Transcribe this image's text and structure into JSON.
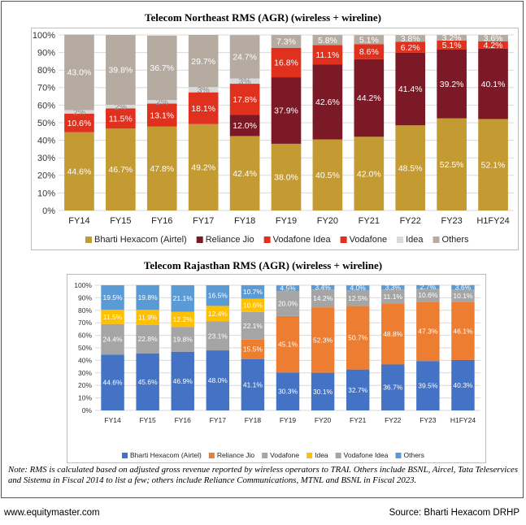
{
  "chart_data": [
    {
      "type": "bar",
      "stacked": true,
      "title": "Telecom Northeast RMS (AGR) (wireless + wireline)",
      "categories": [
        "FY14",
        "FY15",
        "FY16",
        "FY17",
        "FY18",
        "FY19",
        "FY20",
        "FY21",
        "FY22",
        "FY23",
        "H1FY24"
      ],
      "ylim": [
        0,
        100
      ],
      "yticks": [
        "0%",
        "10%",
        "20%",
        "30%",
        "40%",
        "50%",
        "60%",
        "70%",
        "80%",
        "90%",
        "100%"
      ],
      "legend_position": "bottom",
      "series": [
        {
          "name": "Bharti Hexacom (Airtel)",
          "color": "#C49A33",
          "values": [
            44.6,
            46.7,
            47.8,
            49.2,
            42.4,
            38.0,
            40.5,
            42.0,
            48.5,
            52.5,
            52.1
          ],
          "labels": [
            "44.6%",
            "46.7%",
            "47.8%",
            "49.2%",
            "42.4%",
            "38.0%",
            "40.5%",
            "42.0%",
            "48.5%",
            "52.5%",
            "52.1%"
          ]
        },
        {
          "name": "Reliance Jio",
          "color": "#7B1A26",
          "values": [
            0,
            0,
            0,
            0,
            12.0,
            37.9,
            42.6,
            44.2,
            41.4,
            39.2,
            40.1
          ],
          "labels": [
            "",
            "",
            "",
            "",
            "12.0%",
            "37.9%",
            "42.6%",
            "44.2%",
            "41.4%",
            "39.2%",
            "40.1%"
          ]
        },
        {
          "name": "Vodafone Idea",
          "color": "#E0301E",
          "values": [
            0,
            0,
            0,
            0,
            0,
            16.8,
            11.1,
            8.6,
            6.2,
            5.1,
            4.2
          ],
          "labels": [
            "",
            "",
            "",
            "",
            "",
            "16.8%",
            "11.1%",
            "8.6%",
            "6.2%",
            "5.1%",
            "4.2%"
          ]
        },
        {
          "name": "Vodafone",
          "color": "#E0301E",
          "values": [
            10.6,
            11.5,
            13.1,
            18.1,
            17.8,
            0,
            0,
            0,
            0,
            0,
            0
          ],
          "labels": [
            "10.6%",
            "11.5%",
            "13.1%",
            "18.1%",
            "17.8%",
            "",
            "",
            "",
            "",
            "",
            ""
          ]
        },
        {
          "name": "Idea",
          "color": "#D9D9D9",
          "values": [
            2,
            2,
            2,
            3,
            3,
            0,
            0,
            0,
            0,
            0,
            0
          ],
          "labels": [
            "2%",
            "2%",
            "2%",
            "3%",
            "3%",
            "",
            "",
            "",
            "",
            "",
            ""
          ]
        },
        {
          "name": "Others",
          "color": "#B5ABA0",
          "values": [
            43.0,
            39.8,
            36.7,
            29.7,
            24.7,
            7.3,
            5.8,
            5.1,
            3.8,
            3.2,
            3.6
          ],
          "labels": [
            "43.0%",
            "39.8%",
            "36.7%",
            "29.7%",
            "24.7%",
            "7.3%",
            "5.8%",
            "5.1%",
            "3.8%",
            "3.2%",
            "3.6%"
          ]
        }
      ]
    },
    {
      "type": "bar",
      "stacked": true,
      "title": "Telecom Rajasthan RMS (AGR) (wireless + wireline)",
      "categories": [
        "FY14",
        "FY15",
        "FY16",
        "FY17",
        "FY18",
        "FY19",
        "FY20",
        "FY21",
        "FY22",
        "FY23",
        "H1FY24"
      ],
      "ylim": [
        0,
        100
      ],
      "yticks": [
        "0%",
        "10%",
        "20%",
        "30%",
        "40%",
        "50%",
        "60%",
        "70%",
        "80%",
        "90%",
        "100%"
      ],
      "legend_position": "bottom",
      "series": [
        {
          "name": "Bharti Hexacom (Airtel)",
          "color": "#4472C4",
          "values": [
            44.6,
            45.6,
            46.9,
            48.0,
            41.1,
            30.3,
            30.1,
            32.7,
            36.7,
            39.5,
            40.3
          ],
          "labels": [
            "44.6%",
            "45.6%",
            "46.9%",
            "48.0%",
            "41.1%",
            "30.3%",
            "30.1%",
            "32.7%",
            "36.7%",
            "39.5%",
            "40.3%"
          ]
        },
        {
          "name": "Reliance Jio",
          "color": "#ED7D31",
          "values": [
            0,
            0,
            0,
            0,
            15.5,
            45.1,
            52.3,
            50.7,
            48.8,
            47.3,
            46.1
          ],
          "labels": [
            "",
            "",
            "",
            "",
            "15.5%",
            "45.1%",
            "52.3%",
            "50.7%",
            "48.8%",
            "47.3%",
            "46.1%"
          ]
        },
        {
          "name": "Vodafone",
          "color": "#A5A5A5",
          "values": [
            24.4,
            22.8,
            19.8,
            23.1,
            22.1,
            0,
            0,
            0,
            0,
            0,
            0
          ],
          "labels": [
            "24.4%",
            "22.8%",
            "19.8%",
            "23.1%",
            "22.1%",
            "",
            "",
            "",
            "",
            "",
            ""
          ]
        },
        {
          "name": "Idea",
          "color": "#FFC000",
          "values": [
            11.5,
            11.9,
            12.2,
            12.4,
            10.6,
            0,
            0,
            0,
            0,
            0,
            0
          ],
          "labels": [
            "11.5%",
            "11.9%",
            "12.2%",
            "12.4%",
            "10.6%",
            "",
            "",
            "",
            "",
            "",
            ""
          ]
        },
        {
          "name": "Vodafone Idea",
          "color": "#A5A5A5",
          "values": [
            0,
            0,
            0,
            0,
            0,
            20.0,
            14.2,
            12.5,
            11.1,
            10.6,
            10.1
          ],
          "labels": [
            "",
            "",
            "",
            "",
            "",
            "20.0%",
            "14.2%",
            "12.5%",
            "11.1%",
            "10.6%",
            "10.1%"
          ]
        },
        {
          "name": "Others",
          "color": "#5B9BD5",
          "values": [
            19.5,
            19.8,
            21.1,
            16.5,
            10.7,
            4.5,
            3.4,
            4.0,
            3.3,
            2.7,
            3.6
          ],
          "labels": [
            "19.5%",
            "19.8%",
            "21.1%",
            "16.5%",
            "10.7%",
            "4.5%",
            "3.4%",
            "4.0%",
            "3.3%",
            "2.7%",
            "3.6%"
          ]
        }
      ]
    }
  ],
  "note": "Note: RMS is calculated based on adjusted gross revenue reported by wireless operators to TRAI. Others include BSNL, Aircel, Tata Teleservices and Sistema in Fiscal 2014 to list a few; others include Reliance Communications, MTNL and BSNL in Fiscal 2023.",
  "footer": {
    "website": "www.equitymaster.com",
    "source": "Source: Bharti Hexacom DRHP"
  }
}
